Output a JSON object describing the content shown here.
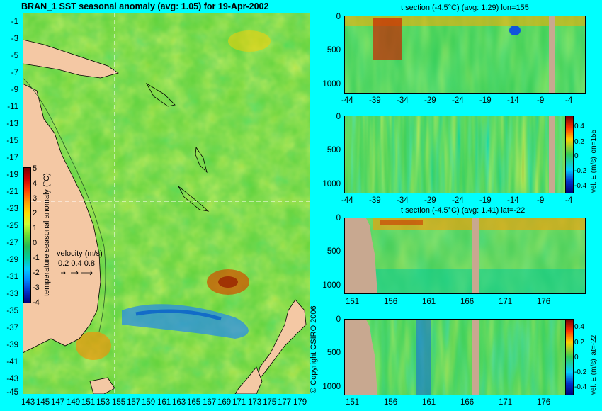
{
  "map": {
    "title": "BRAN_1  SST seasonal anomaly (avg: 1.05) for 19-Apr-2002",
    "lat_ticks": [
      "-1",
      "-3",
      "-5",
      "-7",
      "-9",
      "-11",
      "-13",
      "-15",
      "-17",
      "-19",
      "-21",
      "-23",
      "-25",
      "-27",
      "-29",
      "-31",
      "-33",
      "-35",
      "-37",
      "-39",
      "-41",
      "-43",
      "-45"
    ],
    "lon_ticks": [
      "143",
      "145",
      "147",
      "149",
      "151",
      "153",
      "155",
      "157",
      "159",
      "161",
      "163",
      "165",
      "167",
      "169",
      "171",
      "173",
      "175",
      "177",
      "179"
    ],
    "colorbar": {
      "label": "temperature seasonal anomaly (°C)",
      "ticks": [
        "5",
        "4",
        "3",
        "2",
        "1",
        "0",
        "-1",
        "-2",
        "-3",
        "-4"
      ],
      "colors": [
        "#7a0000",
        "#cc0000",
        "#ff4000",
        "#ff9900",
        "#ffdd00",
        "#ccff33",
        "#66dd33",
        "#22bb55",
        "#00cc99",
        "#00ccff",
        "#0088ff",
        "#0033cc",
        "#00007a"
      ]
    },
    "velocity_legend": {
      "title": "velocity (m/s)",
      "values": "0.2 0.4 0.8"
    },
    "copyright": "© Copyright CSIRO 2006"
  },
  "panels": [
    {
      "title": "t section (-4.5°C) (avg: 1.29) lon=155",
      "x_ticks": [
        "-44",
        "-39",
        "-34",
        "-29",
        "-24",
        "-19",
        "-14",
        "-9",
        "-4"
      ],
      "y_ticks": [
        "0",
        "500",
        "1000"
      ]
    },
    {
      "title": "",
      "x_ticks": [
        "-44",
        "-39",
        "-34",
        "-29",
        "-24",
        "-19",
        "-14",
        "-9",
        "-4"
      ],
      "y_ticks": [
        "0",
        "500",
        "1000"
      ],
      "colorbar_label": "vel. E (m/s) lon=155",
      "colorbar_ticks": [
        "0.4",
        "0.2",
        "0",
        "-0.2",
        "-0.4"
      ]
    },
    {
      "title": "t section (-4.5°C) (avg: 1.41) lat=-22",
      "x_ticks": [
        "151",
        "156",
        "161",
        "166",
        "171",
        "176"
      ],
      "y_ticks": [
        "0",
        "500",
        "1000"
      ]
    },
    {
      "title": "",
      "x_ticks": [
        "151",
        "156",
        "161",
        "166",
        "171",
        "176"
      ],
      "y_ticks": [
        "0",
        "500",
        "1000"
      ],
      "colorbar_label": "vel. E (m/s) lat=-22",
      "colorbar_ticks": [
        "0.4",
        "0.2",
        "0",
        "-0.2",
        "-0.4"
      ]
    }
  ]
}
